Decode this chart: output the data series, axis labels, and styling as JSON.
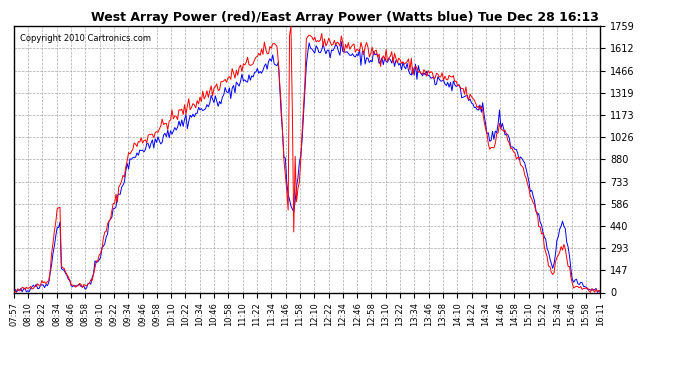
{
  "title": "West Array Power (red)/East Array Power (Watts blue) Tue Dec 28 16:13",
  "copyright": "Copyright 2010 Cartronics.com",
  "yticks": [
    0.0,
    146.6,
    293.2,
    439.8,
    586.3,
    732.9,
    879.5,
    1026.1,
    1172.7,
    1319.3,
    1465.9,
    1612.5,
    1759.0
  ],
  "ylim": [
    0.0,
    1759.0
  ],
  "background_color": "#ffffff",
  "plot_bg_color": "#ffffff",
  "grid_color": "#aaaaaa",
  "red_color": "#ff0000",
  "blue_color": "#0000ff",
  "xtick_labels": [
    "07:57",
    "08:10",
    "08:22",
    "08:34",
    "08:46",
    "08:58",
    "09:10",
    "09:22",
    "09:34",
    "09:46",
    "09:58",
    "10:10",
    "10:22",
    "10:34",
    "10:46",
    "10:58",
    "11:10",
    "11:22",
    "11:34",
    "11:46",
    "11:58",
    "12:10",
    "12:22",
    "12:34",
    "12:46",
    "12:58",
    "13:10",
    "13:22",
    "13:34",
    "13:46",
    "13:58",
    "14:10",
    "14:22",
    "14:34",
    "14:46",
    "14:58",
    "15:10",
    "15:22",
    "15:34",
    "15:46",
    "15:58",
    "16:11"
  ]
}
